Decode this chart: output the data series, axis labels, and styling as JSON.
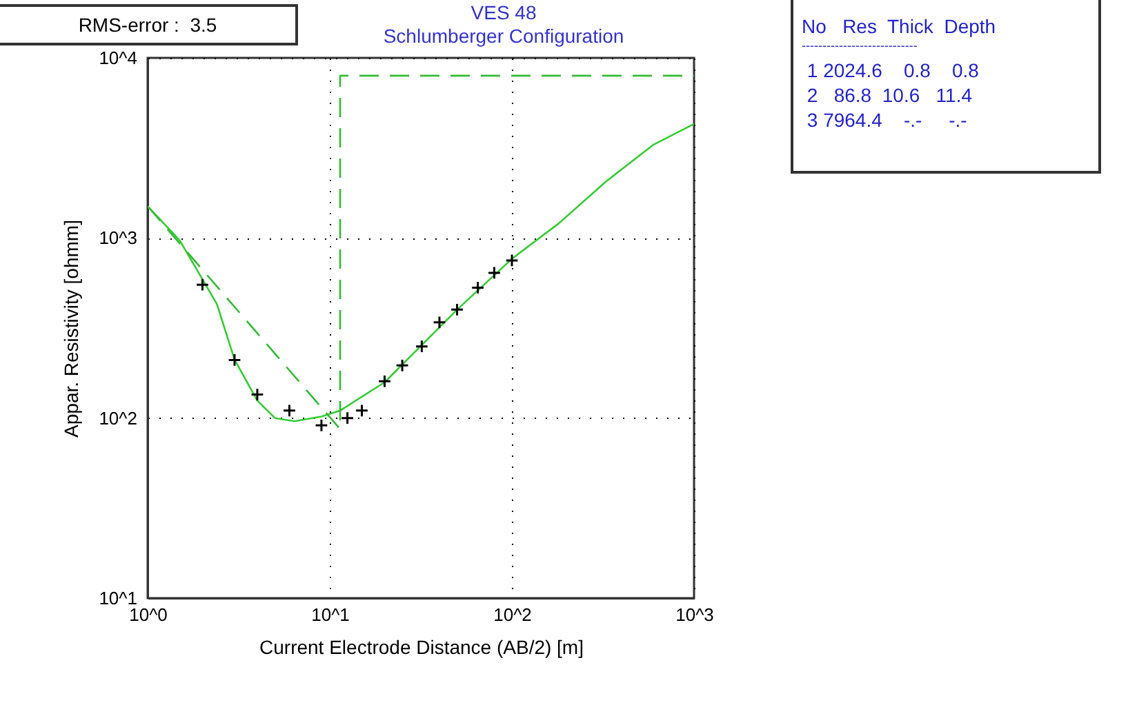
{
  "chart_data": {
    "type": "line",
    "title": "VES 48",
    "subtitle": "Schlumberger Configuration",
    "xlabel": "Current Electrode Distance (AB/2) [m]",
    "ylabel": "Appar. Resistivity [ohmm]",
    "log": "xy",
    "grid": true,
    "xlim": [
      1,
      1000
    ],
    "xticks": [
      {
        "value": 1,
        "label": "10^0"
      },
      {
        "value": 10,
        "label": "10^1"
      },
      {
        "value": 100,
        "label": "10^2"
      },
      {
        "value": 1000,
        "label": "10^3"
      }
    ],
    "ylim": [
      10,
      10000
    ],
    "yticks": [
      {
        "value": 10,
        "label": "10^1"
      },
      {
        "value": 100,
        "label": "10^2"
      },
      {
        "value": 1000,
        "label": "10^3"
      },
      {
        "value": 10000,
        "label": "10^4"
      }
    ],
    "series": [
      {
        "color": "#33cc33",
        "line_style": "solid",
        "x": [
          1,
          1.5,
          2.4,
          3,
          4,
          5,
          6.4,
          9,
          11.4,
          20,
          50,
          100,
          180,
          330,
          600,
          1000
        ],
        "values": [
          1500,
          970,
          430,
          211,
          125,
          100,
          96,
          102,
          110,
          158,
          400,
          766,
          1200,
          2066,
          3300,
          4300
        ]
      },
      {
        "color": "#33bb33",
        "line_style": "dashed",
        "x": [
          1,
          11.4,
          11.4,
          1000
        ],
        "values": [
          1500,
          86.8,
          7964.4,
          7964.4
        ]
      },
      {
        "type": "scatter",
        "color": "#000000",
        "marker": "cross",
        "x": [
          2,
          3,
          4,
          6,
          9,
          12.5,
          15,
          20,
          25,
          32,
          40,
          50,
          65,
          80,
          100
        ],
        "values": [
          550,
          210,
          135,
          110,
          91,
          100,
          110,
          160,
          196,
          250,
          340,
          400,
          530,
          640,
          750
        ]
      }
    ],
    "annotations": [
      "RMS-error :  3.5",
      "No   Res  Thick  Depth",
      "----------------------------",
      " 1 2024.6    0.8    0.8",
      " 2   86.8  10.6   11.4",
      " 3 7964.4    -.-     -.-"
    ]
  }
}
